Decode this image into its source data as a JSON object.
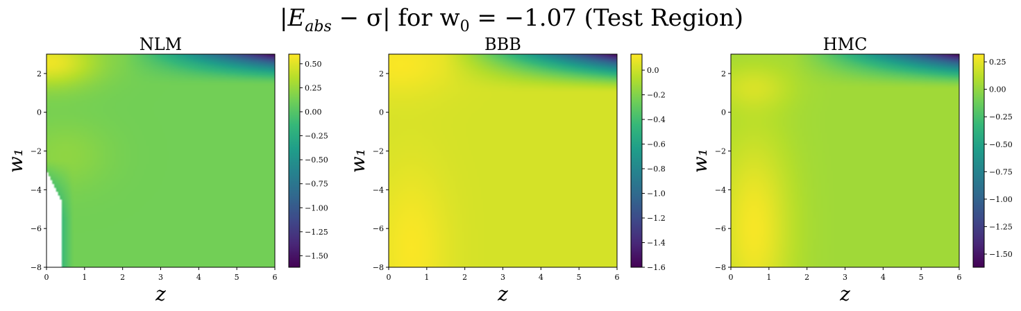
{
  "figure_title": {
    "prefix": "|E",
    "sub": "abs",
    "middle": " − σ| for w",
    "sub2": "0",
    "suffix": " = −1.07 (Test Region)"
  },
  "colormap": [
    "#440154",
    "#482878",
    "#3e4989",
    "#31688e",
    "#26828e",
    "#1f9e89",
    "#35b779",
    "#6ece58",
    "#b5de2b",
    "#fde725"
  ],
  "chart_data": [
    {
      "type": "heatmap",
      "title": "NLM",
      "xlabel": "z",
      "ylabel": "w₁",
      "xlim": [
        0,
        6
      ],
      "ylim": [
        -8,
        3
      ],
      "xticks": [
        0,
        1,
        2,
        3,
        4,
        5,
        6
      ],
      "yticks": [
        -8,
        -6,
        -4,
        -2,
        0,
        2
      ],
      "colorbar": {
        "vmin": -1.62,
        "vmax": 0.6,
        "ticks": [
          0.5,
          0.25,
          0.0,
          -0.25,
          -0.5,
          -0.75,
          -1.0,
          -1.25,
          -1.5
        ],
        "tick_labels": [
          "0.50",
          "0.25",
          "0.00",
          "−0.25",
          "−0.50",
          "−0.75",
          "−1.00",
          "−1.25",
          "−1.50"
        ]
      },
      "background_value": 0.12,
      "features": [
        {
          "kind": "top_strip",
          "z_from": 2.0,
          "w1_from": 1.4,
          "min_value": -1.62
        },
        {
          "kind": "bump",
          "z": 0.05,
          "w1": 2.6,
          "value": 0.55,
          "sz": 0.9,
          "sw": 0.9
        },
        {
          "kind": "bump",
          "z": 0.5,
          "w1": -2.2,
          "value": 0.22,
          "sz": 0.8,
          "sw": 1.2
        },
        {
          "kind": "low_corner",
          "z_edge": 0.7,
          "value": -0.45
        }
      ],
      "masked_region": "lower-left, z < 0.4, w1 < -3.0"
    },
    {
      "type": "heatmap",
      "title": "BBB",
      "xlabel": "z",
      "ylabel": "w₁",
      "xlim": [
        0,
        6
      ],
      "ylim": [
        -8,
        3
      ],
      "xticks": [
        0,
        1,
        2,
        3,
        4,
        5,
        6
      ],
      "yticks": [
        -8,
        -6,
        -4,
        -2,
        0,
        2
      ],
      "colorbar": {
        "vmin": -1.6,
        "vmax": 0.13,
        "ticks": [
          0.0,
          -0.2,
          -0.4,
          -0.6,
          -0.8,
          -1.0,
          -1.2,
          -1.4,
          -1.6
        ],
        "tick_labels": [
          "0.0",
          "−0.2",
          "−0.4",
          "−0.6",
          "−0.8",
          "−1.0",
          "−1.2",
          "−1.4",
          "−1.6"
        ]
      },
      "background_value": 0.02,
      "features": [
        {
          "kind": "top_strip",
          "z_from": 1.4,
          "w1_from": 1.0,
          "min_value": -1.6
        },
        {
          "kind": "bump",
          "z": 0.3,
          "w1": 2.5,
          "value": 0.12,
          "sz": 1.0,
          "sw": 1.2
        },
        {
          "kind": "bump",
          "z": 0.6,
          "w1": -7.0,
          "value": 0.12,
          "sz": 0.7,
          "sw": 3.0
        }
      ],
      "masked_region": ""
    },
    {
      "type": "heatmap",
      "title": "HMC",
      "xlabel": "z",
      "ylabel": "w₁",
      "xlim": [
        0,
        6
      ],
      "ylim": [
        -8,
        3
      ],
      "xticks": [
        0,
        1,
        2,
        3,
        4,
        5,
        6
      ],
      "yticks": [
        -8,
        -6,
        -4,
        -2,
        0,
        2
      ],
      "colorbar": {
        "vmin": -1.62,
        "vmax": 0.32,
        "ticks": [
          0.25,
          0.0,
          -0.25,
          -0.5,
          -0.75,
          -1.0,
          -1.25,
          -1.5
        ],
        "tick_labels": [
          "0.25",
          "0.00",
          "−0.25",
          "−0.50",
          "−0.75",
          "−1.00",
          "−1.25",
          "−1.50"
        ]
      },
      "background_value": 0.04,
      "features": [
        {
          "kind": "top_strip",
          "z_from": 1.6,
          "w1_from": 1.2,
          "min_value": -1.62
        },
        {
          "kind": "bump",
          "z": 0.6,
          "w1": 1.3,
          "value": 0.18,
          "sz": 0.7,
          "sw": 0.8
        },
        {
          "kind": "bump",
          "z": 0.6,
          "w1": -6.0,
          "value": 0.3,
          "sz": 0.7,
          "sw": 3.5
        }
      ],
      "masked_region": ""
    }
  ]
}
